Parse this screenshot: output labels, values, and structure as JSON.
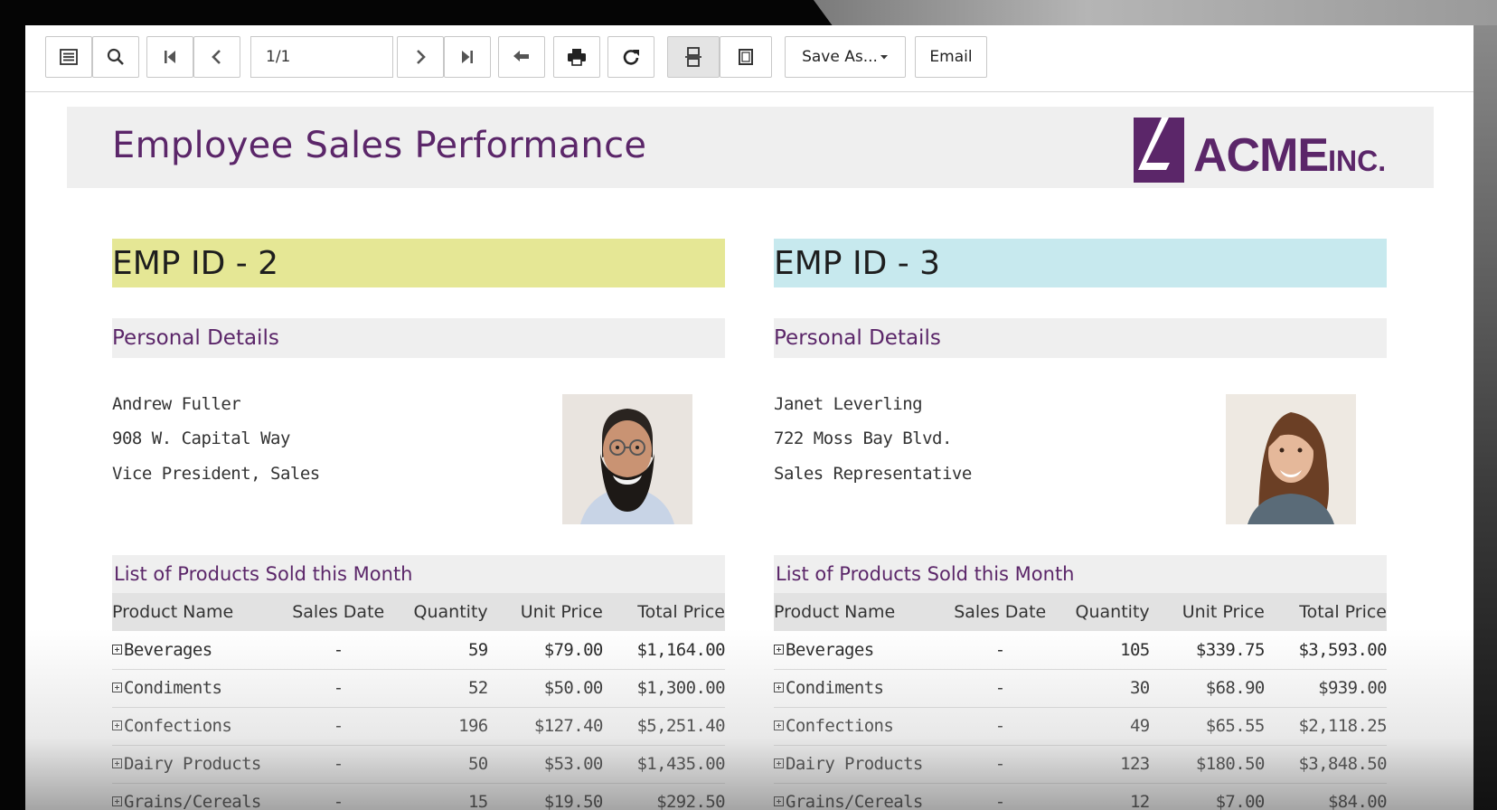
{
  "toolbar": {
    "page_value": "1/1",
    "save_as_label": "Save As...",
    "email_label": "Email"
  },
  "report": {
    "title": "Employee Sales Performance",
    "logo_text": "ACME",
    "logo_suffix": "INC."
  },
  "employees": [
    {
      "id_label": "EMP ID - 2",
      "band_color": "#e5e795",
      "personal_heading": "Personal Details",
      "name": "Andrew Fuller",
      "address": "908 W. Capital Way",
      "title": "Vice President, Sales",
      "list_heading": "List of Products Sold this Month",
      "columns": [
        "Product Name",
        "Sales Date",
        "Quantity",
        "Unit Price",
        "Total Price"
      ],
      "rows": [
        {
          "product": "Beverages",
          "date": "-",
          "qty": "59",
          "unit": "$79.00",
          "total": "$1,164.00"
        },
        {
          "product": "Condiments",
          "date": "-",
          "qty": "52",
          "unit": "$50.00",
          "total": "$1,300.00"
        },
        {
          "product": "Confections",
          "date": "-",
          "qty": "196",
          "unit": "$127.40",
          "total": "$5,251.40"
        },
        {
          "product": "Dairy Products",
          "date": "-",
          "qty": "50",
          "unit": "$53.00",
          "total": "$1,435.00"
        },
        {
          "product": "Grains/Cereals",
          "date": "-",
          "qty": "15",
          "unit": "$19.50",
          "total": "$292.50"
        }
      ]
    },
    {
      "id_label": "EMP ID - 3",
      "band_color": "#c7e9ee",
      "personal_heading": "Personal Details",
      "name": "Janet Leverling",
      "address": "722 Moss Bay Blvd.",
      "title": "Sales Representative",
      "list_heading": "List of Products Sold this Month",
      "columns": [
        "Product Name",
        "Sales Date",
        "Quantity",
        "Unit Price",
        "Total Price"
      ],
      "rows": [
        {
          "product": "Beverages",
          "date": "-",
          "qty": "105",
          "unit": "$339.75",
          "total": "$3,593.00"
        },
        {
          "product": "Condiments",
          "date": "-",
          "qty": "30",
          "unit": "$68.90",
          "total": "$939.00"
        },
        {
          "product": "Confections",
          "date": "-",
          "qty": "49",
          "unit": "$65.55",
          "total": "$2,118.25"
        },
        {
          "product": "Dairy Products",
          "date": "-",
          "qty": "123",
          "unit": "$180.50",
          "total": "$3,848.50"
        },
        {
          "product": "Grains/Cereals",
          "date": "-",
          "qty": "12",
          "unit": "$7.00",
          "total": "$84.00"
        }
      ]
    }
  ],
  "colors": {
    "accent": "#5b2669",
    "band_light": "#efefef"
  }
}
